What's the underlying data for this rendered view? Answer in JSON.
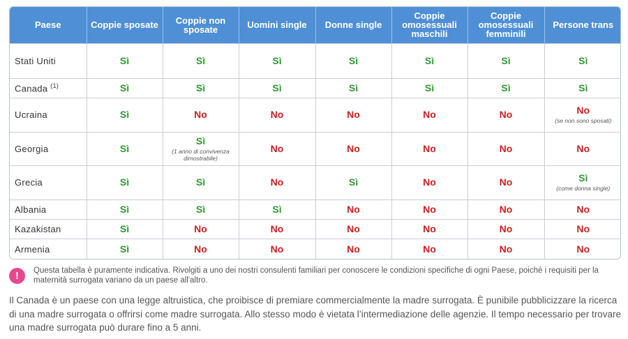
{
  "table": {
    "headers": [
      "Paese",
      "Coppie sposate",
      "Coppie non sposate",
      "Uomini single",
      "Donne single",
      "Coppie omosessuali maschili",
      "Coppie omosessuali femminili",
      "Persone trans"
    ],
    "rows": [
      {
        "country": "Stati Uniti",
        "sup": "",
        "cells": [
          {
            "v": "Sì",
            "t": "yes"
          },
          {
            "v": "Sì",
            "t": "yes"
          },
          {
            "v": "Sì",
            "t": "yes"
          },
          {
            "v": "Sì",
            "t": "yes"
          },
          {
            "v": "Sì",
            "t": "yes"
          },
          {
            "v": "Sì",
            "t": "yes"
          },
          {
            "v": "Sì",
            "t": "yes"
          }
        ]
      },
      {
        "country": "Canada",
        "sup": "(1)",
        "cells": [
          {
            "v": "Sì",
            "t": "yes"
          },
          {
            "v": "Sì",
            "t": "yes"
          },
          {
            "v": "Sì",
            "t": "yes"
          },
          {
            "v": "Sì",
            "t": "yes"
          },
          {
            "v": "Sì",
            "t": "yes"
          },
          {
            "v": "Sì",
            "t": "yes"
          },
          {
            "v": "Sì",
            "t": "yes"
          }
        ]
      },
      {
        "country": "Ucraina",
        "sup": "",
        "cells": [
          {
            "v": "Sì",
            "t": "yes"
          },
          {
            "v": "No",
            "t": "no"
          },
          {
            "v": "No",
            "t": "no"
          },
          {
            "v": "No",
            "t": "no"
          },
          {
            "v": "No",
            "t": "no"
          },
          {
            "v": "No",
            "t": "no"
          },
          {
            "v": "No",
            "t": "no",
            "note": "(se non sono sposati)"
          }
        ]
      },
      {
        "country": "Georgia",
        "sup": "",
        "cells": [
          {
            "v": "Sì",
            "t": "yes"
          },
          {
            "v": "Sì",
            "t": "yes",
            "note": "(1 anno di convivenza dimostrabile)"
          },
          {
            "v": "No",
            "t": "no"
          },
          {
            "v": "No",
            "t": "no"
          },
          {
            "v": "No",
            "t": "no"
          },
          {
            "v": "No",
            "t": "no"
          },
          {
            "v": "No",
            "t": "no"
          }
        ]
      },
      {
        "country": "Grecia",
        "sup": "",
        "cells": [
          {
            "v": "Sì",
            "t": "yes"
          },
          {
            "v": "Sì",
            "t": "yes"
          },
          {
            "v": "No",
            "t": "no"
          },
          {
            "v": "Sì",
            "t": "yes"
          },
          {
            "v": "No",
            "t": "no"
          },
          {
            "v": "No",
            "t": "no"
          },
          {
            "v": "Sì",
            "t": "yes",
            "note": "(come donna single)"
          }
        ]
      },
      {
        "country": "Albania",
        "sup": "",
        "cells": [
          {
            "v": "Sì",
            "t": "yes"
          },
          {
            "v": "Sì",
            "t": "yes"
          },
          {
            "v": "Sì",
            "t": "yes"
          },
          {
            "v": "No",
            "t": "no"
          },
          {
            "v": "No",
            "t": "no"
          },
          {
            "v": "No",
            "t": "no"
          },
          {
            "v": "No",
            "t": "no"
          }
        ]
      },
      {
        "country": "Kazakistan",
        "sup": "",
        "cells": [
          {
            "v": "Sì",
            "t": "yes"
          },
          {
            "v": "No",
            "t": "no"
          },
          {
            "v": "No",
            "t": "no"
          },
          {
            "v": "No",
            "t": "no"
          },
          {
            "v": "No",
            "t": "no"
          },
          {
            "v": "No",
            "t": "no"
          },
          {
            "v": "No",
            "t": "no"
          }
        ]
      },
      {
        "country": "Armenia",
        "sup": "",
        "cells": [
          {
            "v": "Sì",
            "t": "yes"
          },
          {
            "v": "No",
            "t": "no"
          },
          {
            "v": "No",
            "t": "no"
          },
          {
            "v": "No",
            "t": "no"
          },
          {
            "v": "No",
            "t": "no"
          },
          {
            "v": "No",
            "t": "no"
          },
          {
            "v": "No",
            "t": "no"
          }
        ]
      }
    ]
  },
  "colors": {
    "header_bg": "#4f8fd6",
    "yes": "#2f9a2f",
    "no": "#cc1f1f",
    "warning_icon": "#e9468d"
  },
  "disclaimer": {
    "icon": "exclamation-icon",
    "text": "Questa tabella è puramente indicativa. Rivolgiti a uno dei nostri consulenti familiari per conoscere le condizioni specifiche di ogni Paese, poiché i requisiti per la maternità surrogata variano da un paese all'altro."
  },
  "body_text": "Il Canada è un paese con una legge altruistica, che proibisce di premiare commercialmente la madre surrogata. È punibile pubblicizzare la ricerca di una madre surrogata o offrirsi come madre surrogata. Allo stesso modo è vietata l’intermediazione delle agenzie. Il tempo necessario per trovare una madre surrogata può durare fino a 5 anni."
}
